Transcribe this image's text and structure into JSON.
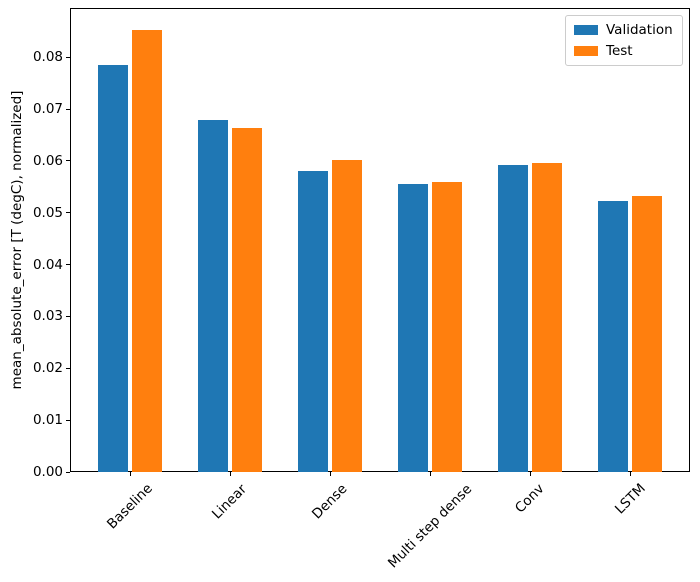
{
  "chart_data": {
    "type": "bar",
    "title": "",
    "xlabel": "",
    "ylabel": "mean_absolute_error [T (degC), normalized]",
    "categories": [
      "Baseline",
      "Linear",
      "Dense",
      "Multi step dense",
      "Conv",
      "LSTM"
    ],
    "series": [
      {
        "name": "Validation",
        "color": "#1f77b4",
        "values": [
          0.0785,
          0.0679,
          0.0581,
          0.0556,
          0.0593,
          0.0522
        ]
      },
      {
        "name": "Test",
        "color": "#ff7f0e",
        "values": [
          0.0852,
          0.0663,
          0.0602,
          0.056,
          0.0596,
          0.0532
        ]
      }
    ],
    "ylim": [
      0,
      0.0895
    ],
    "yticks": [
      0.0,
      0.01,
      0.02,
      0.03,
      0.04,
      0.05,
      0.06,
      0.07,
      0.08
    ],
    "ytick_labels": [
      "0.00",
      "0.01",
      "0.02",
      "0.03",
      "0.04",
      "0.05",
      "0.06",
      "0.07",
      "0.08"
    ],
    "xtick_rotation_deg": 45,
    "grid": false,
    "legend": {
      "position": "upper right",
      "labels": [
        "Validation",
        "Test"
      ]
    }
  },
  "colors": {
    "spine": "#000000",
    "text": "#000000",
    "legend_border": "#cccccc",
    "background": "#ffffff"
  }
}
